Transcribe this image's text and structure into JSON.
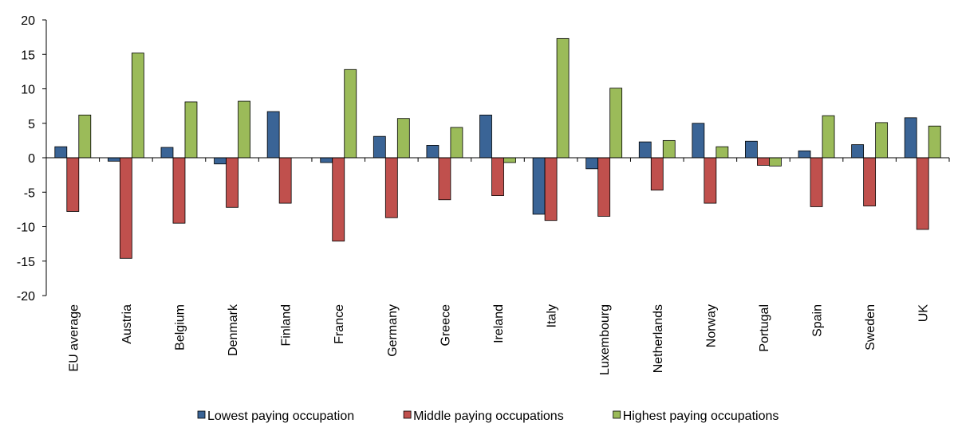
{
  "chart_data": {
    "type": "bar",
    "categories": [
      "EU average",
      "Austria",
      "Belgium",
      "Denmark",
      "Finland",
      "France",
      "Germany",
      "Greece",
      "Ireland",
      "Italy",
      "Luxembourg",
      "Netherlands",
      "Norway",
      "Portugal",
      "Spain",
      "Sweden",
      "UK"
    ],
    "series": [
      {
        "name": "Lowest paying occupation",
        "color": "#3a6496",
        "values": [
          1.6,
          -0.5,
          1.5,
          -0.9,
          6.7,
          -0.7,
          3.1,
          1.8,
          6.2,
          -8.2,
          -1.6,
          2.3,
          5.0,
          2.4,
          1.0,
          1.9,
          5.8
        ]
      },
      {
        "name": "Middle paying occupations",
        "color": "#c0504d",
        "values": [
          -7.8,
          -14.6,
          -9.5,
          -7.2,
          -6.6,
          -12.1,
          -8.7,
          -6.1,
          -5.5,
          -9.1,
          -8.5,
          -4.7,
          -6.6,
          -1.1,
          -7.1,
          -7.0,
          -10.4
        ]
      },
      {
        "name": "Highest paying occupations",
        "color": "#9bbb59",
        "values": [
          6.2,
          15.2,
          8.1,
          8.2,
          0,
          12.8,
          5.7,
          4.4,
          -0.7,
          17.3,
          10.1,
          2.5,
          1.6,
          -1.2,
          6.1,
          5.1,
          4.6
        ]
      }
    ],
    "ylim": [
      -20,
      20
    ],
    "yticks": [
      -20,
      -15,
      -10,
      -5,
      0,
      5,
      10,
      15,
      20
    ],
    "grid": false,
    "legend": "bottom"
  }
}
